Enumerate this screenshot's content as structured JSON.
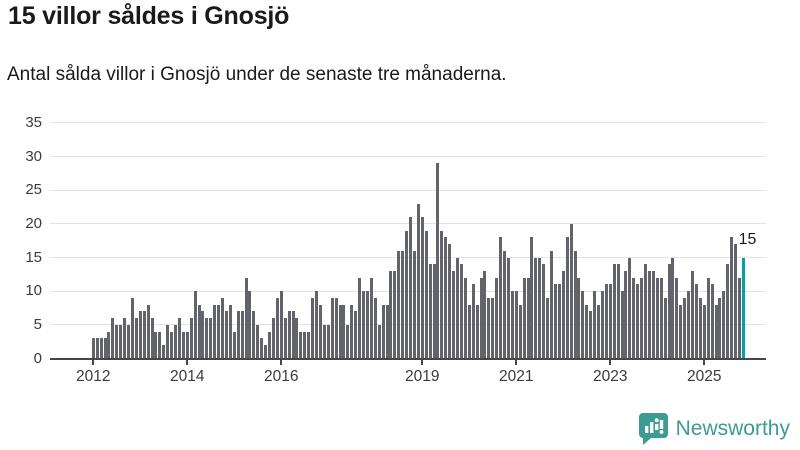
{
  "header": {
    "title": "15 villor såldes i Gnosjö",
    "subtitle": "Antal sålda villor i Gnosjö under de senaste tre månaderna."
  },
  "chart_data": {
    "type": "bar",
    "title": "15 villor såldes i Gnosjö",
    "subtitle": "Antal sålda villor i Gnosjö under de senaste tre månaderna.",
    "x_start_month": "2012-01",
    "x_end_month": "2025-11",
    "frequency": "monthly",
    "values": [
      3,
      3,
      3,
      3,
      4,
      6,
      5,
      5,
      6,
      5,
      9,
      6,
      7,
      7,
      8,
      6,
      4,
      4,
      2,
      5,
      4,
      5,
      6,
      4,
      4,
      6,
      10,
      8,
      7,
      6,
      6,
      8,
      8,
      9,
      7,
      8,
      4,
      7,
      7,
      12,
      10,
      7,
      5,
      3,
      2,
      4,
      6,
      9,
      10,
      6,
      7,
      7,
      6,
      4,
      4,
      4,
      9,
      10,
      8,
      5,
      5,
      9,
      9,
      8,
      8,
      5,
      8,
      7,
      12,
      10,
      10,
      12,
      9,
      5,
      8,
      8,
      13,
      13,
      16,
      16,
      19,
      21,
      16,
      23,
      21,
      19,
      14,
      14,
      29,
      19,
      18,
      17,
      13,
      15,
      14,
      12,
      8,
      11,
      8,
      12,
      13,
      9,
      9,
      12,
      18,
      16,
      15,
      10,
      10,
      8,
      12,
      12,
      18,
      15,
      15,
      14,
      9,
      16,
      11,
      11,
      13,
      18,
      20,
      16,
      12,
      10,
      8,
      7,
      10,
      8,
      10,
      11,
      11,
      14,
      14,
      10,
      13,
      15,
      12,
      11,
      12,
      14,
      13,
      13,
      12,
      12,
      9,
      14,
      15,
      12,
      8,
      9,
      10,
      13,
      11,
      9,
      8,
      12,
      11,
      8,
      9,
      10,
      14,
      18,
      17,
      12,
      15
    ],
    "highlight_last": true,
    "highlight_value_label": "15",
    "ylim": [
      0,
      35
    ],
    "y_ticks": [
      0,
      5,
      10,
      15,
      20,
      25,
      30,
      35
    ],
    "x_ticks": [
      {
        "label": "2012",
        "month_index": 0
      },
      {
        "label": "2014",
        "month_index": 24
      },
      {
        "label": "2016",
        "month_index": 48
      },
      {
        "label": "2019",
        "month_index": 84
      },
      {
        "label": "2021",
        "month_index": 108
      },
      {
        "label": "2023",
        "month_index": 132
      },
      {
        "label": "2025",
        "month_index": 156
      }
    ],
    "grid": "horizontal",
    "legend": "none",
    "colors": {
      "bar": "#63636b",
      "highlight": "#00a3a6",
      "gridline": "#e2e2e2",
      "axis": "#46464c",
      "text": "#1a1a1a",
      "tick_text": "#3b3b3b"
    }
  },
  "footer": {
    "brand": "Newsworthy",
    "logo_color": "#3b9c93",
    "logo_icon": "bar-chart-speech-bubble-icon"
  }
}
